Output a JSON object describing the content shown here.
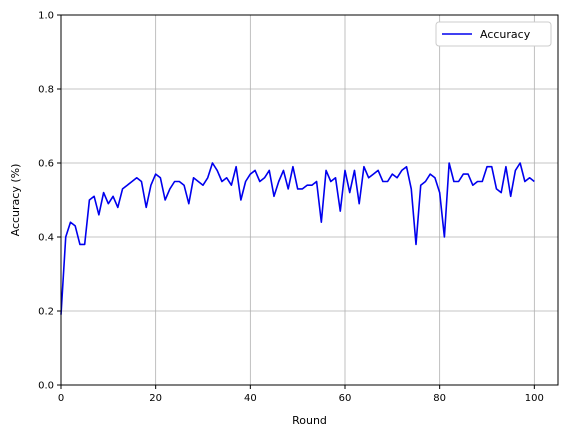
{
  "chart_data": {
    "type": "line",
    "title": "",
    "xlabel": "Round",
    "ylabel": "Accuracy (%)",
    "xlim": [
      0,
      105
    ],
    "ylim": [
      0.0,
      1.0
    ],
    "xticks": [
      0,
      20,
      40,
      60,
      80,
      100
    ],
    "xtick_labels": [
      "0",
      "20",
      "40",
      "60",
      "80",
      "100"
    ],
    "yticks": [
      0.0,
      0.2,
      0.4,
      0.6,
      0.8,
      1.0
    ],
    "ytick_labels": [
      "0.0",
      "0.2",
      "0.4",
      "0.6",
      "0.8",
      "1.0"
    ],
    "grid": true,
    "legend_position": "top-right",
    "series": [
      {
        "name": "Accuracy",
        "color": "#0000ee",
        "x": [
          0,
          1,
          2,
          3,
          4,
          5,
          6,
          7,
          8,
          9,
          10,
          11,
          12,
          13,
          14,
          15,
          16,
          17,
          18,
          19,
          20,
          21,
          22,
          23,
          24,
          25,
          26,
          27,
          28,
          29,
          30,
          31,
          32,
          33,
          34,
          35,
          36,
          37,
          38,
          39,
          40,
          41,
          42,
          43,
          44,
          45,
          46,
          47,
          48,
          49,
          50,
          51,
          52,
          53,
          54,
          55,
          56,
          57,
          58,
          59,
          60,
          61,
          62,
          63,
          64,
          65,
          66,
          67,
          68,
          69,
          70,
          71,
          72,
          73,
          74,
          75,
          76,
          77,
          78,
          79,
          80,
          81,
          82,
          83,
          84,
          85,
          86,
          87,
          88,
          89,
          90,
          91,
          92,
          93,
          94,
          95,
          96,
          97,
          98,
          99,
          100
        ],
        "values": [
          0.19,
          0.4,
          0.44,
          0.43,
          0.38,
          0.38,
          0.5,
          0.51,
          0.46,
          0.52,
          0.49,
          0.51,
          0.48,
          0.53,
          0.54,
          0.55,
          0.56,
          0.55,
          0.48,
          0.54,
          0.57,
          0.56,
          0.5,
          0.53,
          0.55,
          0.55,
          0.54,
          0.49,
          0.56,
          0.55,
          0.54,
          0.56,
          0.6,
          0.58,
          0.55,
          0.56,
          0.54,
          0.59,
          0.5,
          0.55,
          0.57,
          0.58,
          0.55,
          0.56,
          0.58,
          0.51,
          0.55,
          0.58,
          0.53,
          0.59,
          0.53,
          0.53,
          0.54,
          0.54,
          0.55,
          0.44,
          0.58,
          0.55,
          0.56,
          0.47,
          0.58,
          0.52,
          0.58,
          0.49,
          0.59,
          0.56,
          0.57,
          0.58,
          0.55,
          0.55,
          0.57,
          0.56,
          0.58,
          0.59,
          0.53,
          0.38,
          0.54,
          0.55,
          0.57,
          0.56,
          0.52,
          0.4,
          0.6,
          0.55,
          0.55,
          0.57,
          0.57,
          0.54,
          0.55,
          0.55,
          0.59,
          0.59,
          0.53,
          0.52,
          0.59,
          0.51,
          0.58,
          0.6,
          0.55,
          0.56,
          0.55
        ]
      }
    ]
  }
}
